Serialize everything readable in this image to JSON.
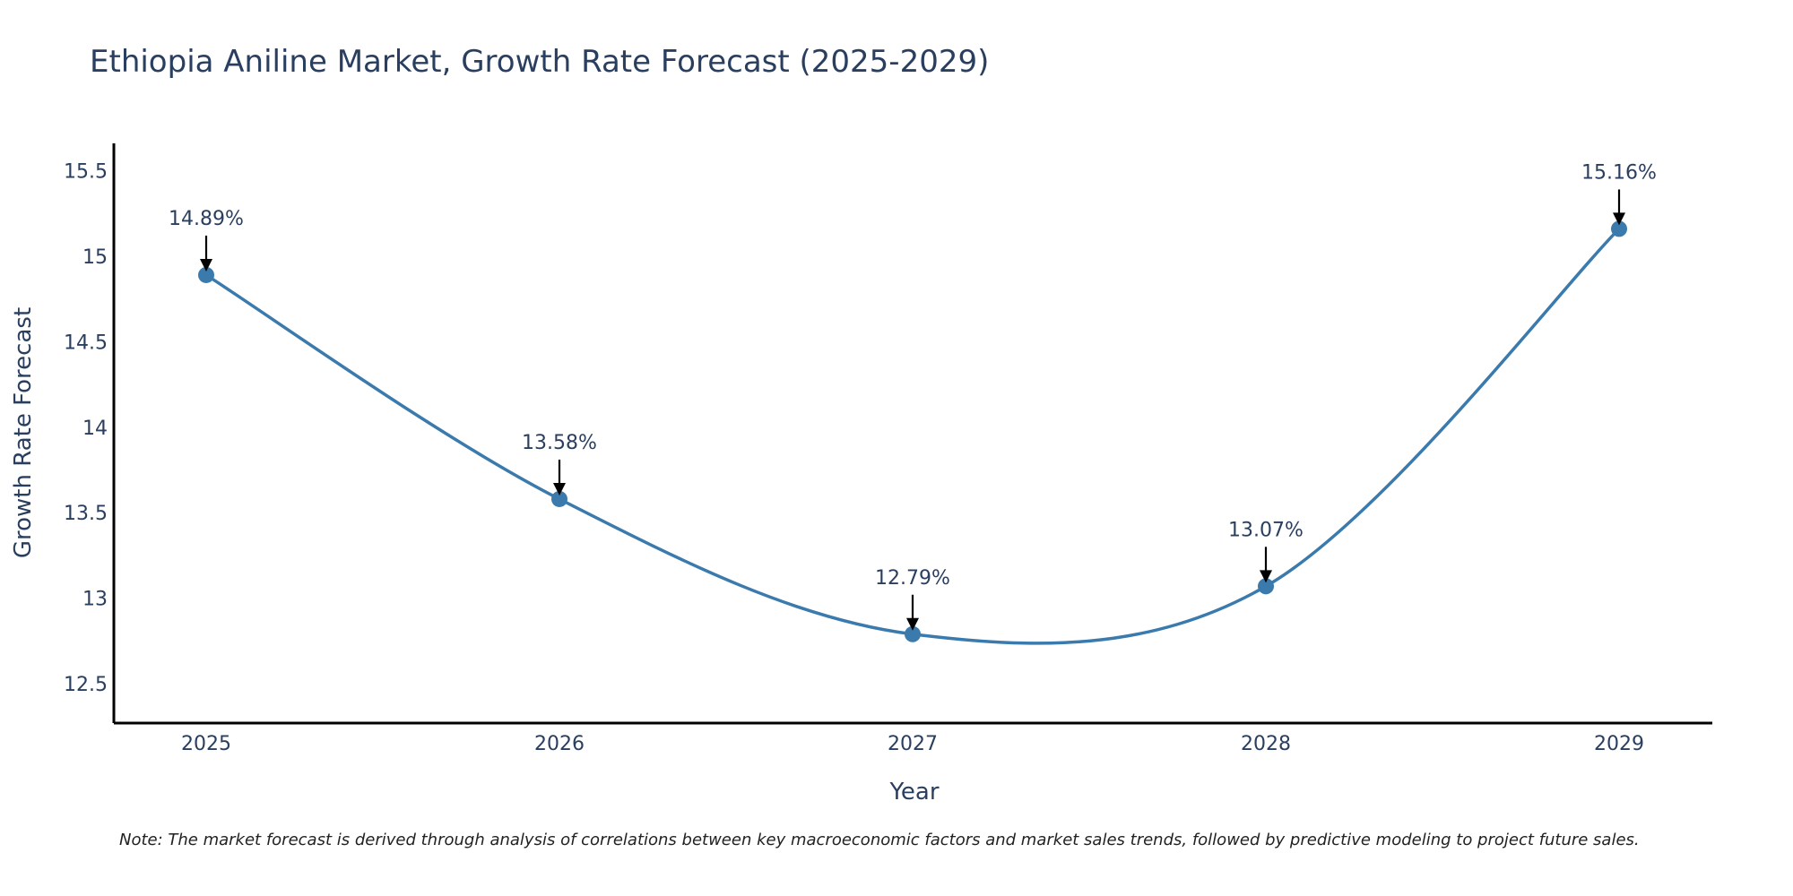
{
  "chart_data": {
    "type": "line",
    "title": "Ethiopia Aniline Market, Growth Rate Forecast (2025-2029)",
    "xlabel": "Year",
    "ylabel": "Growth Rate Forecast",
    "categories": [
      "2025",
      "2026",
      "2027",
      "2028",
      "2029"
    ],
    "series": [
      {
        "name": "Growth Rate Forecast",
        "values": [
          14.89,
          13.58,
          12.79,
          13.07,
          15.16
        ],
        "labels": [
          "14.89%",
          "13.58%",
          "12.79%",
          "13.07%",
          "15.16%"
        ]
      }
    ],
    "yticks": [
      "12.5",
      "13",
      "13.5",
      "14",
      "14.5",
      "15",
      "15.5"
    ],
    "ylim": [
      12.27,
      15.66
    ],
    "line_color": "#3a7aad",
    "marker_color": "#3a7aad",
    "smoothing": "spline",
    "grid": false,
    "note": "Note: The market forecast is derived through analysis of correlations between key macroeconomic factors and market sales trends, followed by predictive modeling to project future sales."
  }
}
